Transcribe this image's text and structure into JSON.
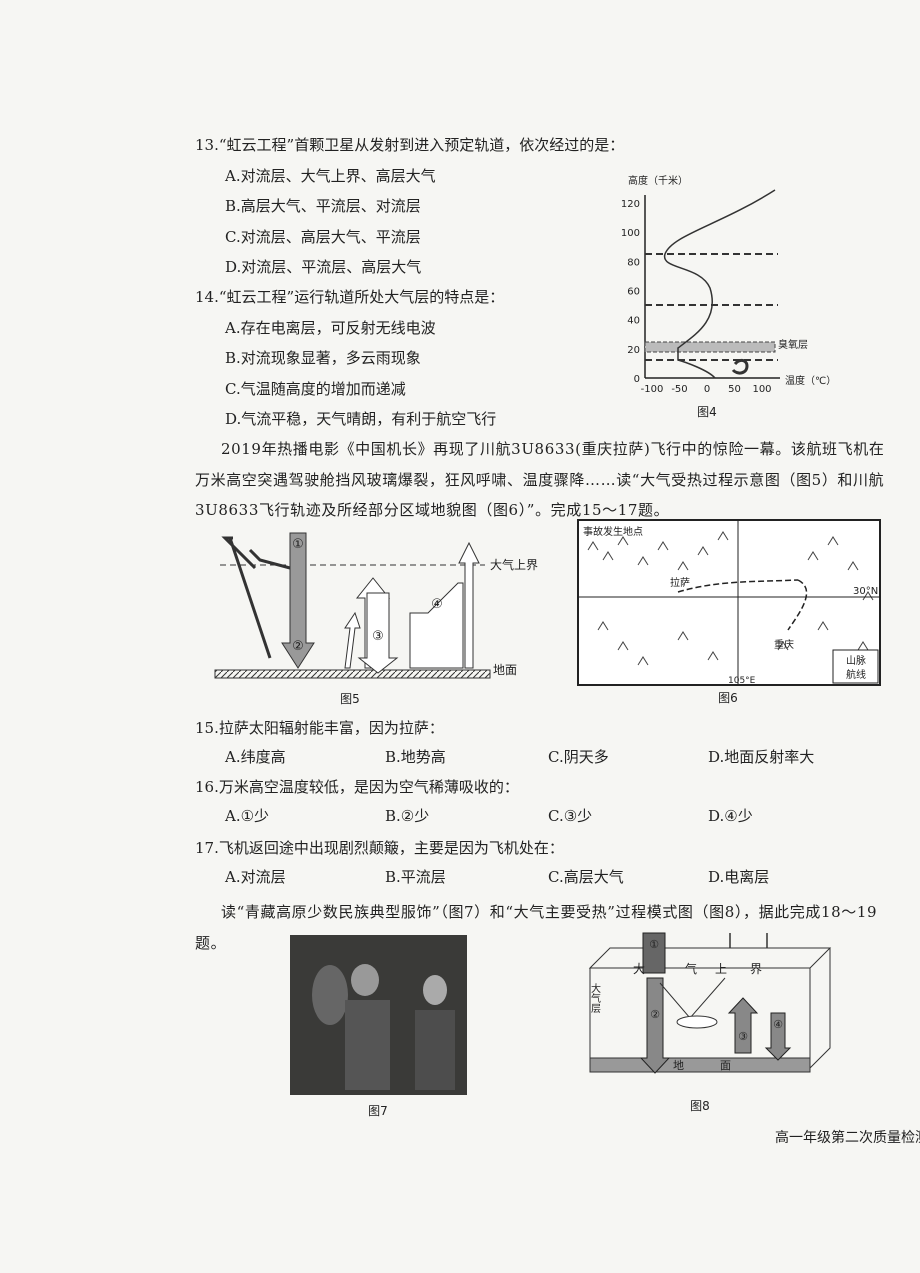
{
  "questions": [
    {
      "stem": "13.“虹云工程”首颗卫星从发射到进入预定轨道，依次经过的是：",
      "options": [
        "A.对流层、大气上界、高层大气",
        "B.高层大气、平流层、对流层",
        "C.对流层、高层大气、平流层",
        "D.对流层、平流层、高层大气"
      ]
    },
    {
      "stem": "14.“虹云工程”运行轨道所处大气层的特点是：",
      "options": [
        "A.存在电离层，可反射无线电波",
        "B.对流现象显著，多云雨现象",
        "C.气温随高度的增加而递减",
        "D.气流平稳，天气晴朗，有利于航空飞行"
      ]
    },
    {
      "stem": "15.拉萨太阳辐射能丰富，因为拉萨：",
      "options": [
        "A.纬度高",
        "B.地势高",
        "C.阴天多",
        "D.地面反射率大"
      ]
    },
    {
      "stem": "16.万米高空温度较低，是因为空气稀薄吸收的：",
      "options": [
        "A.①少",
        "B.②少",
        "C.③少",
        "D.④少"
      ]
    },
    {
      "stem": "17.飞机返回途中出现剧烈颠簸，主要是因为飞机处在：",
      "options": [
        "A.对流层",
        "B.平流层",
        "C.高层大气",
        "D.电离层"
      ]
    }
  ],
  "passages": [
    "2019年热播电影《中国机长》再现了川航3U8633(重庆拉萨)飞行中的惊险一幕。该航班飞机在万米高空突遇驾驶舱挡风玻璃爆裂，狂风呼啸、温度骤降……读“大气受热过程示意图（图5）和川航3U8633飞行轨迹及所经部分区域地貌图（图6）”。完成15～17题。",
    "读“青藏高原少数民族典型服饰”（图7）和“大气主要受热”过程模式图（图8），据此完成18～19题。"
  ],
  "figures": {
    "fig4": {
      "caption": "图4",
      "y_label": "高度（千米）",
      "x_label": "温度（℃）",
      "yticks": [
        0,
        20,
        40,
        60,
        80,
        100,
        120
      ],
      "xticks": [
        -100,
        -50,
        0,
        50,
        100
      ],
      "layer": "臭氧层"
    },
    "fig5": {
      "caption": "图5",
      "top": "大气上界",
      "ground": "地面",
      "marks": [
        "①",
        "②",
        "③",
        "④"
      ]
    },
    "fig6": {
      "caption": "图6",
      "accident": "事故发生地点",
      "lhasa": "拉萨",
      "chongqing": "重庆",
      "lat": "30°N",
      "lon": "105°E",
      "legend": [
        "山脉",
        "航线"
      ]
    },
    "fig7": {
      "caption": "图7"
    },
    "fig8": {
      "caption": "图8",
      "top": [
        "大",
        "气",
        "上",
        "界"
      ],
      "layer": "大气层",
      "ground": [
        "地",
        "面"
      ],
      "marks": [
        "①",
        "②",
        "③",
        "④"
      ]
    }
  },
  "footer": "高一年级第二次质量检测"
}
